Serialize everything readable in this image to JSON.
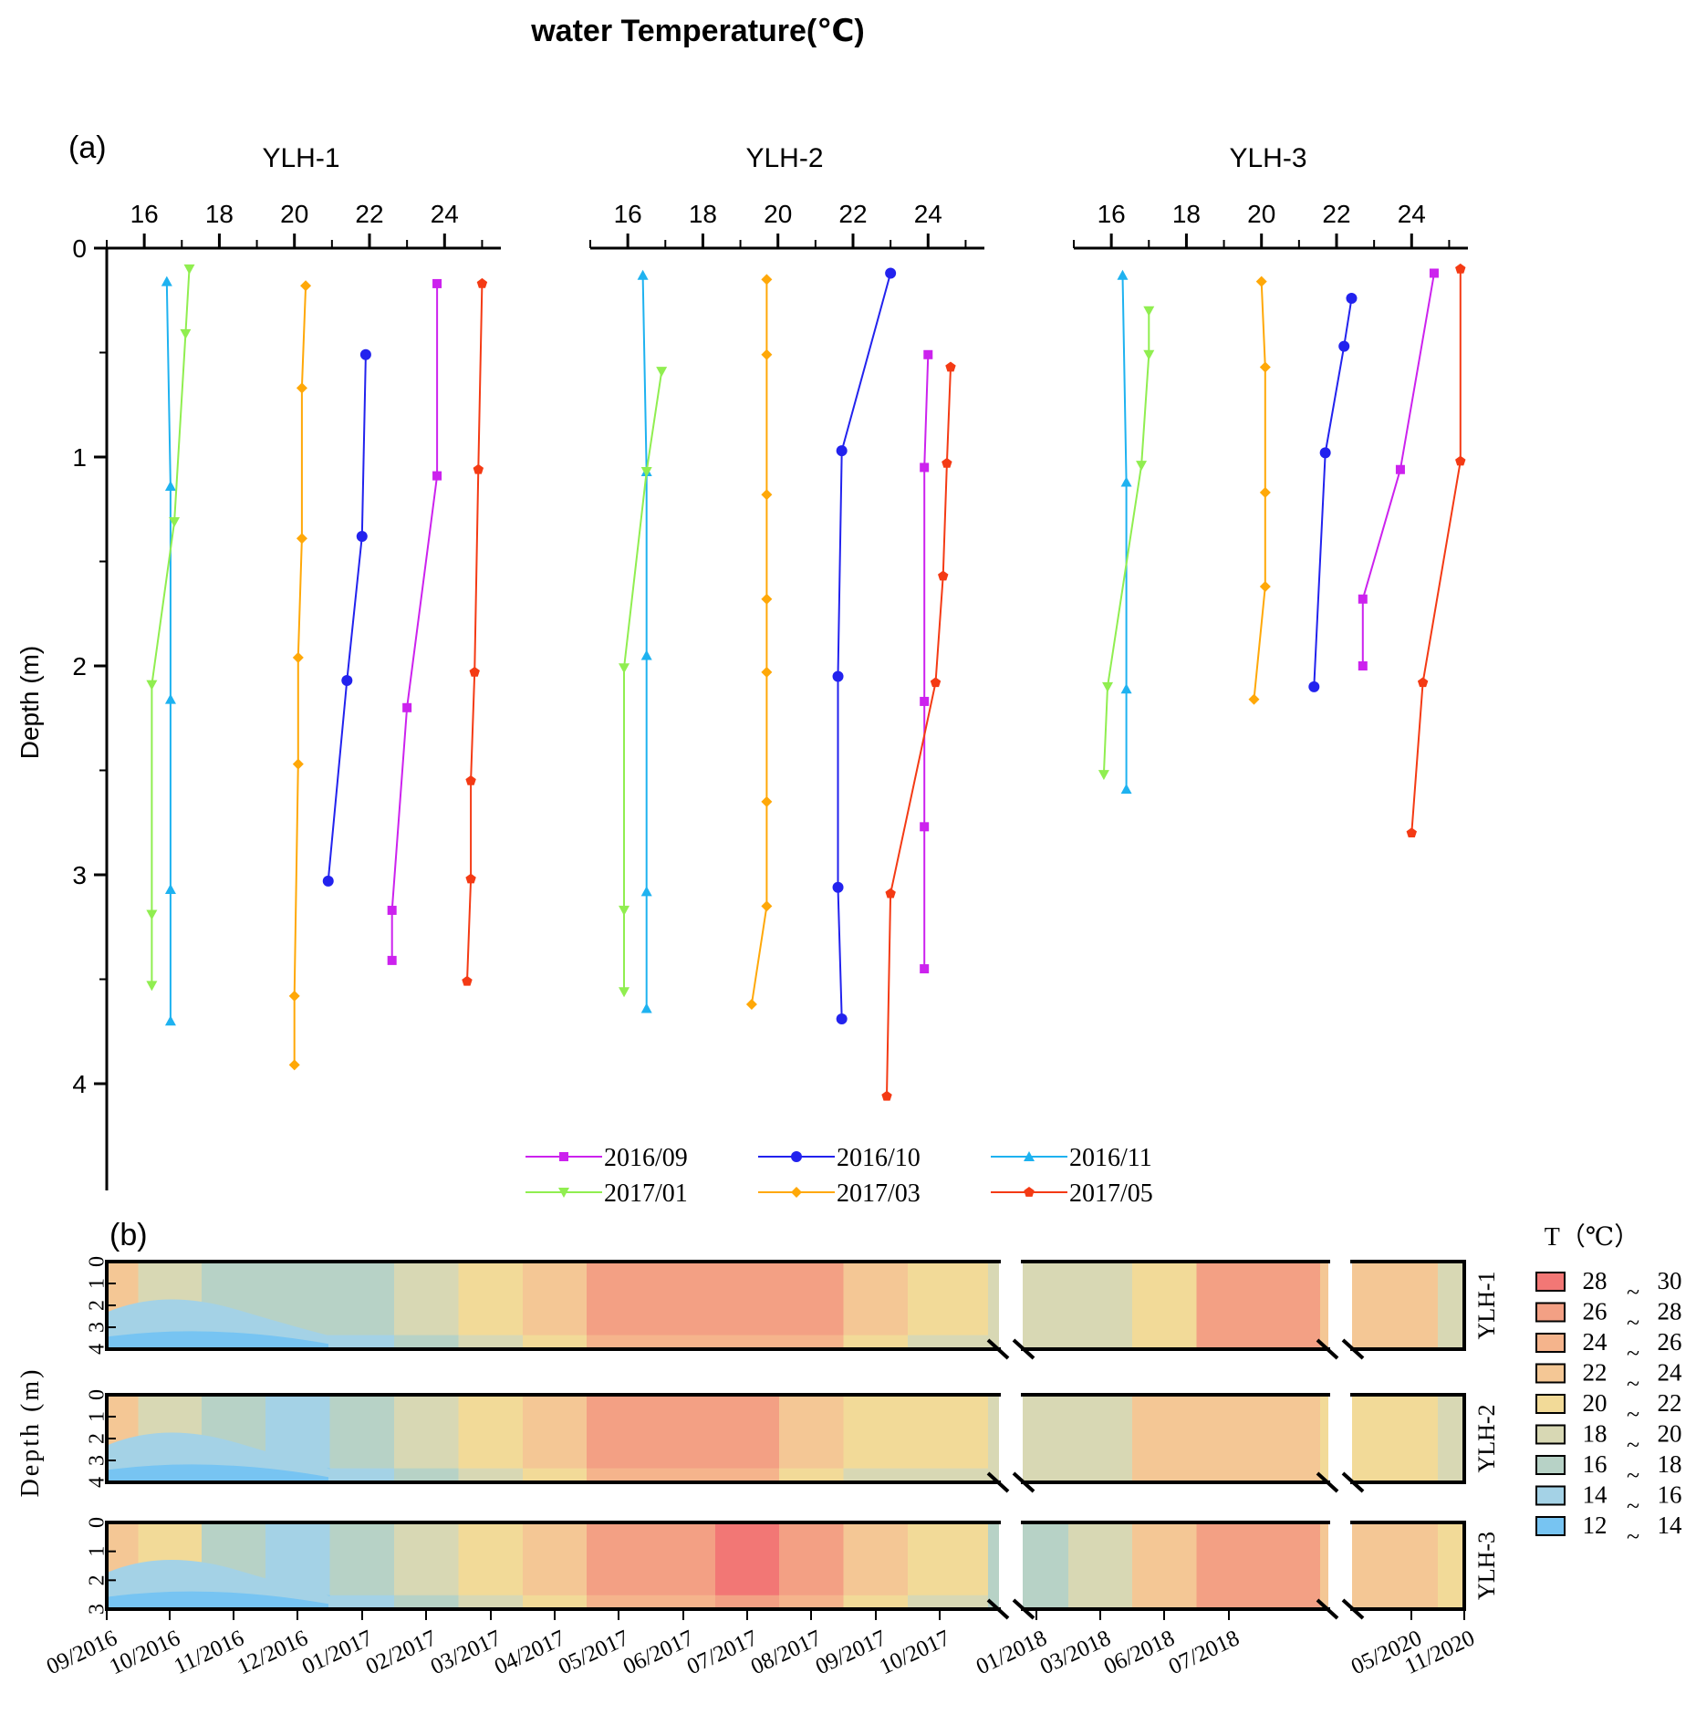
{
  "figure_title": "water  Temperature(℃)",
  "chart_data": [
    {
      "type": "line",
      "panel": "(a)",
      "subplots": [
        "YLH-1",
        "YLH-2",
        "YLH-3"
      ],
      "ylabel": "Depth (m)",
      "ylim": [
        0,
        4.5
      ],
      "yticks": [
        "0",
        "1",
        "2",
        "3",
        "4"
      ],
      "xlim": [
        15,
        25.5
      ],
      "xticks": [
        "16",
        "18",
        "20",
        "22",
        "24"
      ],
      "series": [
        {
          "name": "2016/09",
          "color": "#cc22ee",
          "marker": "square"
        },
        {
          "name": "2016/10",
          "color": "#2222ee",
          "marker": "circle"
        },
        {
          "name": "2016/11",
          "color": "#1eb2f0",
          "marker": "triangle-up"
        },
        {
          "name": "2017/01",
          "color": "#90ee50",
          "marker": "triangle-down"
        },
        {
          "name": "2017/03",
          "color": "#ffa808",
          "marker": "diamond"
        },
        {
          "name": "2017/05",
          "color": "#f43a14",
          "marker": "pentagon"
        }
      ],
      "profiles": {
        "YLH-1": {
          "2016/09": [
            [
              23.8,
              0.17
            ],
            [
              23.8,
              1.09
            ],
            [
              23.0,
              2.2
            ],
            [
              22.6,
              3.17
            ],
            [
              22.6,
              3.41
            ]
          ],
          "2016/10": [
            [
              21.9,
              0.51
            ],
            [
              21.8,
              1.38
            ],
            [
              21.4,
              2.07
            ],
            [
              20.9,
              3.03
            ]
          ],
          "2016/11": [
            [
              16.6,
              0.16
            ],
            [
              16.7,
              1.14
            ],
            [
              16.7,
              2.16
            ],
            [
              16.7,
              3.07
            ],
            [
              16.7,
              3.7
            ]
          ],
          "2017/01": [
            [
              17.2,
              0.1
            ],
            [
              17.1,
              0.41
            ],
            [
              16.8,
              1.31
            ],
            [
              16.2,
              2.09
            ],
            [
              16.2,
              3.19
            ],
            [
              16.2,
              3.53
            ]
          ],
          "2017/03": [
            [
              20.3,
              0.18
            ],
            [
              20.2,
              0.67
            ],
            [
              20.2,
              1.39
            ],
            [
              20.1,
              1.96
            ],
            [
              20.1,
              2.47
            ],
            [
              20.0,
              3.58
            ],
            [
              20.0,
              3.91
            ]
          ],
          "2017/05": [
            [
              25.0,
              0.17
            ],
            [
              24.9,
              1.06
            ],
            [
              24.8,
              2.03
            ],
            [
              24.7,
              2.55
            ],
            [
              24.7,
              3.02
            ],
            [
              24.6,
              3.51
            ]
          ]
        },
        "YLH-2": {
          "2016/09": [
            [
              24.0,
              0.51
            ],
            [
              23.9,
              1.05
            ],
            [
              23.9,
              2.17
            ],
            [
              23.9,
              2.77
            ],
            [
              23.9,
              3.45
            ]
          ],
          "2016/10": [
            [
              23.0,
              0.12
            ],
            [
              21.7,
              0.97
            ],
            [
              21.6,
              2.05
            ],
            [
              21.6,
              3.06
            ],
            [
              21.7,
              3.69
            ]
          ],
          "2016/11": [
            [
              16.4,
              0.13
            ],
            [
              16.5,
              1.07
            ],
            [
              16.5,
              1.95
            ],
            [
              16.5,
              3.08
            ],
            [
              16.5,
              3.64
            ]
          ],
          "2017/01": [
            [
              16.9,
              0.59
            ],
            [
              16.5,
              1.07
            ],
            [
              15.9,
              2.01
            ],
            [
              15.9,
              3.17
            ],
            [
              15.9,
              3.56
            ]
          ],
          "2017/03": [
            [
              19.7,
              0.15
            ],
            [
              19.7,
              0.51
            ],
            [
              19.7,
              1.18
            ],
            [
              19.7,
              1.68
            ],
            [
              19.7,
              2.03
            ],
            [
              19.7,
              2.65
            ],
            [
              19.7,
              3.15
            ],
            [
              19.3,
              3.62
            ]
          ],
          "2017/05": [
            [
              24.6,
              0.57
            ],
            [
              24.5,
              1.03
            ],
            [
              24.4,
              1.57
            ],
            [
              24.2,
              2.08
            ],
            [
              23.0,
              3.09
            ],
            [
              22.9,
              4.06
            ]
          ]
        },
        "YLH-3": {
          "2016/09": [
            [
              24.6,
              0.12
            ],
            [
              23.7,
              1.06
            ],
            [
              22.7,
              1.68
            ],
            [
              22.7,
              2.0
            ]
          ],
          "2016/10": [
            [
              22.4,
              0.24
            ],
            [
              22.2,
              0.47
            ],
            [
              21.7,
              0.98
            ],
            [
              21.4,
              2.1
            ]
          ],
          "2016/11": [
            [
              16.3,
              0.13
            ],
            [
              16.4,
              1.12
            ],
            [
              16.4,
              2.11
            ],
            [
              16.4,
              2.59
            ]
          ],
          "2017/01": [
            [
              17.0,
              0.3
            ],
            [
              17.0,
              0.51
            ],
            [
              16.8,
              1.04
            ],
            [
              15.9,
              2.1
            ],
            [
              15.8,
              2.52
            ]
          ],
          "2017/03": [
            [
              20.0,
              0.16
            ],
            [
              20.1,
              0.57
            ],
            [
              20.1,
              1.17
            ],
            [
              20.1,
              1.62
            ],
            [
              19.8,
              2.16
            ]
          ],
          "2017/05": [
            [
              25.3,
              0.1
            ],
            [
              25.3,
              1.02
            ],
            [
              24.3,
              2.08
            ],
            [
              24.0,
              2.8
            ]
          ]
        }
      }
    },
    {
      "type": "heatmap",
      "panel": "(b)",
      "ylabel": "Depth (m)",
      "rows": [
        {
          "name": "YLH-1",
          "yticks": [
            "0",
            "1",
            "2",
            "3",
            "4"
          ],
          "depth_max": 4
        },
        {
          "name": "YLH-2",
          "yticks": [
            "0",
            "1",
            "2",
            "3",
            "4"
          ],
          "depth_max": 4
        },
        {
          "name": "YLH-3",
          "yticks": [
            "0",
            "1",
            "2",
            "3"
          ],
          "depth_max": 3
        }
      ],
      "xticks": [
        "09/2016",
        "10/2016",
        "11/2016",
        "12/2016",
        "01/2017",
        "02/2017",
        "03/2017",
        "04/2017",
        "05/2017",
        "06/2017",
        "07/2017",
        "08/2017",
        "09/2017",
        "10/2017",
        "01/2018",
        "03/2018",
        "06/2018",
        "07/2018",
        "05/2020",
        "11/2020"
      ],
      "legend_title": "T（℃）",
      "legend": [
        {
          "low": "28",
          "high": "30",
          "color": "#f27775"
        },
        {
          "low": "26",
          "high": "28",
          "color": "#f3a084"
        },
        {
          "low": "24",
          "high": "26",
          "color": "#f5b48c"
        },
        {
          "low": "22",
          "high": "24",
          "color": "#f4c795"
        },
        {
          "low": "20",
          "high": "22",
          "color": "#f2da98"
        },
        {
          "low": "18",
          "high": "20",
          "color": "#d8d8b4"
        },
        {
          "low": "16",
          "high": "18",
          "color": "#b7d2c6"
        },
        {
          "low": "14",
          "high": "16",
          "color": "#a4d2e6"
        },
        {
          "low": "12",
          "high": "14",
          "color": "#77c4f2"
        }
      ],
      "legend_sep": "~",
      "month_colors": [
        [
          "#f4c795",
          "#d8d8b4",
          "#b7d2c6",
          "#b7d2c6",
          "#b7d2c6",
          "#d8d8b4",
          "#f2da98",
          "#f4c795",
          "#f3a084",
          "#f3a084",
          "#f3a084",
          "#f3a084",
          "#f4c795",
          "#f2da98",
          "#d8d8b4",
          "#d8d8b4",
          "#f2da98",
          "#f3a084",
          "#f4c795",
          "#d8d8b4"
        ],
        [
          "#f4c795",
          "#d8d8b4",
          "#b7d2c6",
          "#a4d2e6",
          "#b7d2c6",
          "#d8d8b4",
          "#f2da98",
          "#f4c795",
          "#f3a084",
          "#f3a084",
          "#f3a084",
          "#f4c795",
          "#f2da98",
          "#f2da98",
          "#d8d8b4",
          "#d8d8b4",
          "#f4c795",
          "#f4c795",
          "#f2da98",
          "#d8d8b4"
        ],
        [
          "#f4c795",
          "#f2da98",
          "#b7d2c6",
          "#a4d2e6",
          "#b7d2c6",
          "#d8d8b4",
          "#f2da98",
          "#f4c795",
          "#f3a084",
          "#f3a084",
          "#f27775",
          "#f3a084",
          "#f4c795",
          "#f2da98",
          "#b7d2c6",
          "#d8d8b4",
          "#f4c795",
          "#f3a084",
          "#f4c795",
          "#f2da98"
        ]
      ]
    }
  ]
}
